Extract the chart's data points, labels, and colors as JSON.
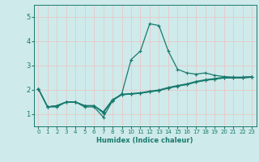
{
  "title": "",
  "xlabel": "Humidex (Indice chaleur)",
  "bg_color": "#ceeaea",
  "grid_color": "#c0dada",
  "line_color": "#1a7a6e",
  "xlim": [
    -0.5,
    23.5
  ],
  "ylim": [
    0.5,
    5.5
  ],
  "yticks": [
    1,
    2,
    3,
    4,
    5
  ],
  "xticks": [
    0,
    1,
    2,
    3,
    4,
    5,
    6,
    7,
    8,
    9,
    10,
    11,
    12,
    13,
    14,
    15,
    16,
    17,
    18,
    19,
    20,
    21,
    22,
    23
  ],
  "line1_x": [
    0,
    1,
    2,
    3,
    4,
    5,
    6,
    7,
    8,
    9,
    10,
    11,
    12,
    13,
    14,
    15,
    16,
    17,
    18,
    19,
    20,
    21,
    22,
    23
  ],
  "line1_y": [
    2.05,
    1.3,
    1.3,
    1.5,
    1.5,
    1.3,
    1.3,
    0.88,
    1.55,
    1.85,
    3.25,
    3.6,
    4.72,
    4.65,
    3.6,
    2.85,
    2.7,
    2.65,
    2.7,
    2.6,
    2.55,
    2.52,
    2.52,
    2.55
  ],
  "line2_x": [
    0,
    1,
    2,
    3,
    4,
    5,
    6,
    7,
    8,
    9,
    10,
    11,
    12,
    13,
    14,
    15,
    16,
    17,
    18,
    19,
    20,
    21,
    22,
    23
  ],
  "line2_y": [
    2.05,
    1.3,
    1.35,
    1.5,
    1.5,
    1.35,
    1.35,
    1.1,
    1.6,
    1.82,
    1.85,
    1.88,
    1.95,
    2.0,
    2.1,
    2.18,
    2.25,
    2.35,
    2.42,
    2.47,
    2.52,
    2.52,
    2.52,
    2.55
  ],
  "line3_x": [
    0,
    1,
    2,
    3,
    4,
    5,
    6,
    7,
    8,
    9,
    10,
    11,
    12,
    13,
    14,
    15,
    16,
    17,
    18,
    19,
    20,
    21,
    22,
    23
  ],
  "line3_y": [
    2.05,
    1.3,
    1.35,
    1.5,
    1.5,
    1.35,
    1.35,
    1.05,
    1.57,
    1.8,
    1.83,
    1.86,
    1.92,
    1.97,
    2.07,
    2.15,
    2.22,
    2.32,
    2.39,
    2.44,
    2.49,
    2.49,
    2.49,
    2.52
  ],
  "line4_x": [
    0,
    1,
    2,
    3,
    4,
    5,
    6,
    7,
    8,
    9,
    10,
    11,
    12,
    13,
    14,
    15,
    16,
    17,
    18,
    19,
    20,
    21,
    22,
    23
  ],
  "line4_y": [
    2.05,
    1.3,
    1.35,
    1.5,
    1.5,
    1.35,
    1.35,
    1.08,
    1.58,
    1.81,
    1.84,
    1.87,
    1.93,
    1.98,
    2.08,
    2.16,
    2.23,
    2.33,
    2.4,
    2.45,
    2.5,
    2.5,
    2.5,
    2.53
  ]
}
